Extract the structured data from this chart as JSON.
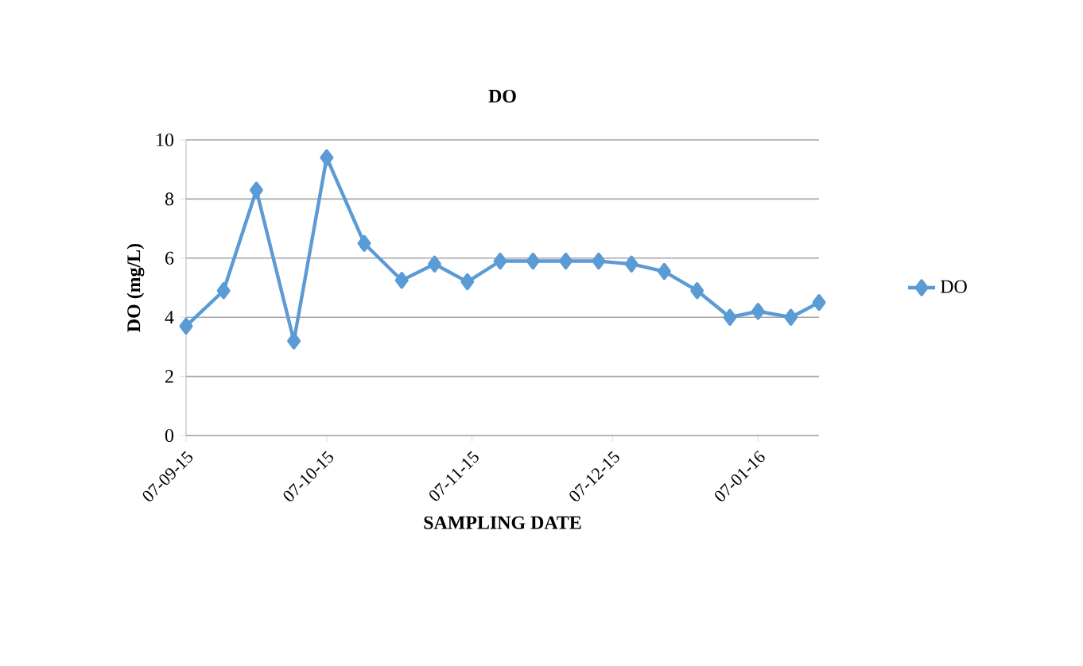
{
  "chart_data": {
    "type": "line",
    "title": "DO",
    "xlabel": "SAMPLING DATE",
    "ylabel": "DO (mg/L)",
    "x": [
      "2015-09-07",
      "2015-09-15",
      "2015-09-22",
      "2015-09-30",
      "2015-10-07",
      "2015-10-15",
      "2015-10-23",
      "2015-10-30",
      "2015-11-06",
      "2015-11-13",
      "2015-11-20",
      "2015-11-27",
      "2015-12-04",
      "2015-12-11",
      "2015-12-18",
      "2015-12-25",
      "2016-01-01",
      "2016-01-07",
      "2016-01-14",
      "2016-01-20"
    ],
    "series": [
      {
        "name": "DO",
        "color": "#5b9bd5",
        "values": [
          3.7,
          4.9,
          8.3,
          3.2,
          9.4,
          6.5,
          5.25,
          5.8,
          5.2,
          5.9,
          5.9,
          5.9,
          5.9,
          5.8,
          5.55,
          4.9,
          4.0,
          4.2,
          4.0,
          4.5
        ]
      }
    ],
    "xlim": [
      "2015-09-07",
      "2016-01-20"
    ],
    "xticks": [
      {
        "value": "2015-09-07",
        "label": "07-09-15"
      },
      {
        "value": "2015-10-07",
        "label": "07-10-15"
      },
      {
        "value": "2015-11-07",
        "label": "07-11-15"
      },
      {
        "value": "2015-12-07",
        "label": "07-12-15"
      },
      {
        "value": "2016-01-07",
        "label": "07-01-16"
      }
    ],
    "ylim": [
      0,
      10
    ],
    "yticks": [
      0,
      2,
      4,
      6,
      8,
      10
    ],
    "grid": "y",
    "legend": "right",
    "marker": "diamond",
    "line_style": "solid"
  }
}
